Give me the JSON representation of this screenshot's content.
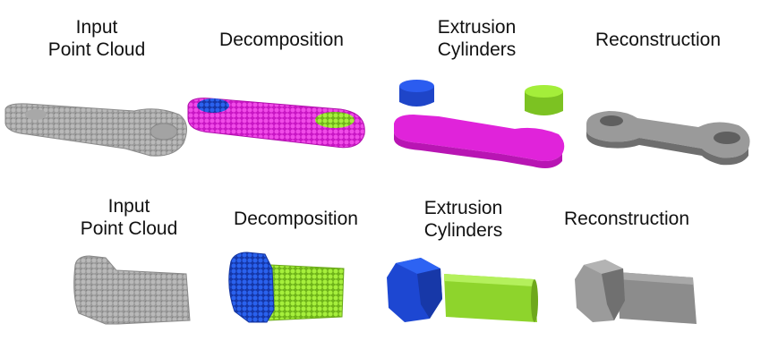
{
  "row1": {
    "input": [
      "Input",
      "Point Cloud"
    ],
    "decomposition": "Decomposition",
    "extrusion": [
      "Extrusion",
      "Cylinders"
    ],
    "reconstruction": "Reconstruction"
  },
  "row2": {
    "input": [
      "Input",
      "Point Cloud"
    ],
    "decomposition": "Decomposition",
    "extrusion": [
      "Extrusion",
      "Cylinders"
    ],
    "reconstruction": "Reconstruction"
  },
  "colors": {
    "gray_points": "#8f8f8f",
    "magenta": "#e81fe0",
    "blue": "#1f4fe0",
    "green": "#92e22a"
  }
}
